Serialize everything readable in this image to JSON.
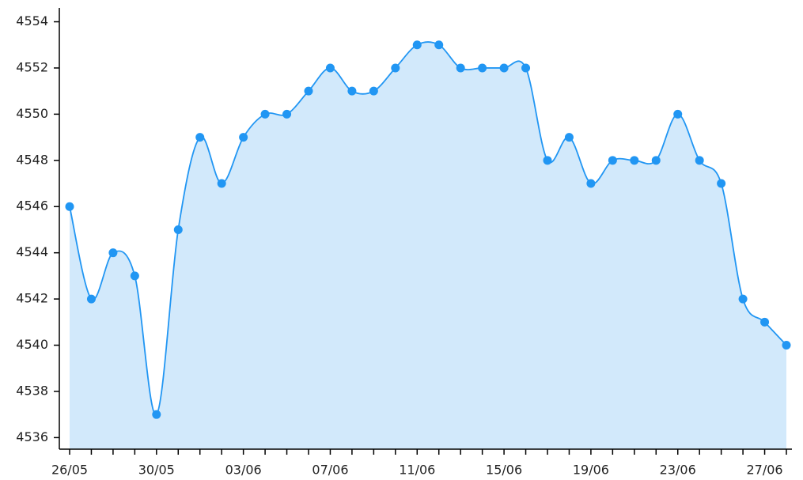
{
  "chart_data": {
    "type": "area",
    "categories": [
      "26/05",
      null,
      null,
      null,
      "30/05",
      null,
      null,
      null,
      "03/06",
      null,
      null,
      null,
      "07/06",
      null,
      null,
      null,
      "11/06",
      null,
      null,
      null,
      "15/06",
      null,
      null,
      null,
      "19/06",
      null,
      null,
      null,
      "23/06",
      null,
      null,
      null,
      "27/06",
      null
    ],
    "values": [
      4546,
      4542,
      4544,
      4543,
      4537,
      4545,
      4549,
      4547,
      4549,
      4550,
      4550,
      4551,
      4552,
      4551,
      4551,
      4552,
      4553,
      4553,
      4552,
      4552,
      4552,
      4552,
      4548,
      4549,
      4547,
      4548,
      4548,
      4548,
      4550,
      4548,
      4547,
      4542,
      4541,
      4540
    ],
    "color": "#2196f3",
    "fill": "#d2e9fb",
    "ylim": [
      4535.5,
      4554.6
    ],
    "yticks": [
      4536,
      4538,
      4540,
      4542,
      4544,
      4546,
      4548,
      4550,
      4552,
      4554
    ]
  }
}
